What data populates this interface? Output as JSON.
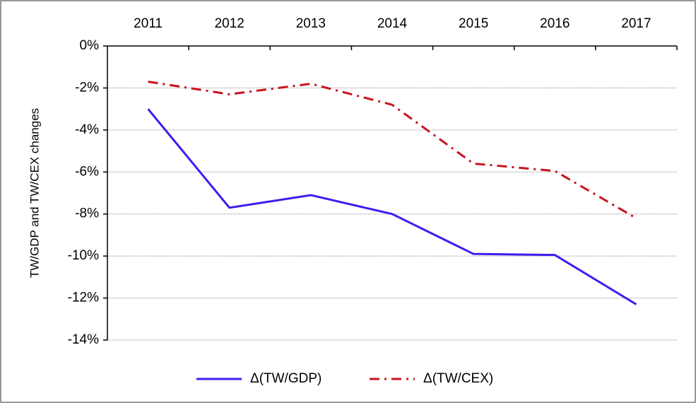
{
  "chart_data": {
    "type": "line",
    "y_label": "TW/GDP and TW/CEX changes",
    "categories": [
      "2011",
      "2012",
      "2013",
      "2014",
      "2015",
      "2016",
      "2017"
    ],
    "series": [
      {
        "name": "Δ(TW/GDP)",
        "color": "#3a1ff0",
        "dash": "solid",
        "values": [
          -3.0,
          -7.7,
          -7.1,
          -8.0,
          -9.9,
          -9.95,
          -12.3
        ]
      },
      {
        "name": "Δ(TW/CEX)",
        "color": "#c8141e",
        "dash": "dash-dot",
        "values": [
          -1.7,
          -2.3,
          -1.8,
          -2.8,
          -5.6,
          -5.95,
          -8.2
        ]
      }
    ],
    "ylim": [
      -14,
      0
    ],
    "yticks": [
      {
        "value": 0,
        "label": "0%"
      },
      {
        "value": -2,
        "label": "-2%"
      },
      {
        "value": -4,
        "label": "-4%"
      },
      {
        "value": -6,
        "label": "-6%"
      },
      {
        "value": -8,
        "label": "-8%"
      },
      {
        "value": -10,
        "label": "-10%"
      },
      {
        "value": -12,
        "label": "-12%"
      },
      {
        "value": -14,
        "label": "-14%"
      }
    ],
    "grid": true,
    "legend": "bottom"
  }
}
